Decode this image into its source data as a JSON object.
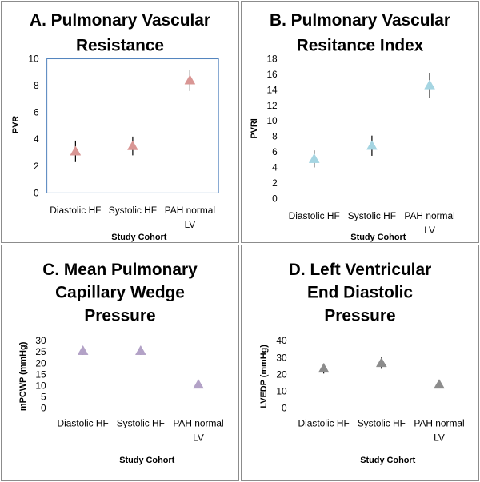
{
  "chart_data": [
    {
      "type": "scatter",
      "title_lines": [
        "A. Pulmonary Vascular",
        "Resistance"
      ],
      "xlabel": "Study Cohort",
      "ylabel": "PVR",
      "categories": [
        [
          "Diastolic HF"
        ],
        [
          "Systolic HF"
        ],
        [
          "PAH normal",
          "LV"
        ]
      ],
      "ylim": [
        0,
        10
      ],
      "yticks": [
        0,
        2,
        4,
        6,
        8,
        10
      ],
      "values": [
        3.1,
        3.5,
        8.4
      ],
      "errors": [
        0.8,
        0.7,
        0.8
      ],
      "marker_color": "#d99694",
      "plot_border": "#4f81bd"
    },
    {
      "type": "scatter",
      "title_lines": [
        "B. Pulmonary Vascular",
        "Resitance Index"
      ],
      "xlabel": "Study Cohort",
      "ylabel": "PVRI",
      "categories": [
        [
          "Diastolic HF"
        ],
        [
          "Systolic HF"
        ],
        [
          "PAH normal",
          "LV"
        ]
      ],
      "ylim": [
        0,
        18
      ],
      "yticks": [
        0,
        2,
        4,
        6,
        8,
        10,
        12,
        14,
        16,
        18
      ],
      "values": [
        5.1,
        6.8,
        14.6
      ],
      "errors": [
        1.1,
        1.3,
        1.6
      ],
      "marker_color": "#a5d5e2",
      "plot_border": ""
    },
    {
      "type": "scatter",
      "title_lines": [
        "C. Mean Pulmonary",
        "Capillary Wedge",
        "Pressure"
      ],
      "xlabel": "Study Cohort",
      "ylabel": "mPCWP (mmHg)",
      "categories": [
        [
          "Diastolic HF"
        ],
        [
          "Systolic HF"
        ],
        [
          "PAH normal",
          "LV"
        ]
      ],
      "ylim": [
        0,
        30
      ],
      "yticks": [
        0,
        5,
        10,
        15,
        20,
        25,
        30
      ],
      "values": [
        25.5,
        25.5,
        10.5
      ],
      "errors": [
        1.8,
        1.8,
        1.0
      ],
      "marker_color": "#b3a2c7",
      "plot_border": ""
    },
    {
      "type": "scatter",
      "title_lines": [
        "D. Left Ventricular",
        "End Diastolic",
        "Pressure"
      ],
      "xlabel": "Study Cohort",
      "ylabel": "LVEDP (mmHg)",
      "categories": [
        [
          "Diastolic HF"
        ],
        [
          "Systolic HF"
        ],
        [
          "PAH normal",
          "LV"
        ]
      ],
      "ylim": [
        0,
        40
      ],
      "yticks": [
        0,
        10,
        20,
        30,
        40
      ],
      "values": [
        23.5,
        26.8,
        14.0
      ],
      "errors": [
        3.0,
        3.5,
        1.5
      ],
      "marker_color": "#8c8c8c",
      "plot_border": ""
    }
  ]
}
